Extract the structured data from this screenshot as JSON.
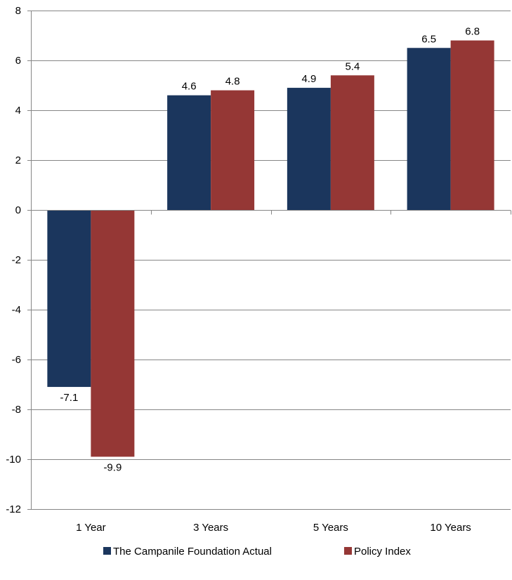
{
  "chart_data": {
    "type": "bar",
    "title": "",
    "xlabel": "",
    "ylabel": "",
    "categories": [
      "1 Year",
      "3 Years",
      "5 Years",
      "10 Years"
    ],
    "series": [
      {
        "name": "The Campanile Foundation Actual",
        "color": "#1b365d",
        "values": [
          -7.1,
          4.6,
          4.9,
          6.5
        ],
        "labels": [
          "-7.1",
          "4.6",
          "4.9",
          "6.5"
        ]
      },
      {
        "name": "Policy Index",
        "color": "#953735",
        "values": [
          -9.9,
          4.8,
          5.4,
          6.8
        ],
        "labels": [
          "-9.9",
          "4.8",
          "5.4",
          "6.8"
        ]
      }
    ],
    "ylim": [
      -12,
      8
    ],
    "yticks": [
      8,
      6,
      4,
      2,
      0,
      -2,
      -4,
      -6,
      -8,
      -10,
      -12
    ],
    "ytick_labels": [
      "8",
      "6",
      "4",
      "2",
      "0",
      "-2",
      "-4",
      "-6",
      "-8",
      "-10",
      "-12"
    ],
    "grid": true,
    "legend_position": "bottom"
  }
}
